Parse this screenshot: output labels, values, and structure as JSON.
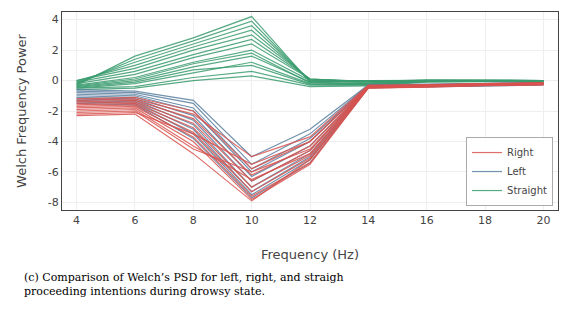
{
  "chart_data": {
    "type": "line",
    "xlabel": "Frequency (Hz)",
    "ylabel": "Welch Frequency Power",
    "annotations": [
      "(c) Comparison of Welch’s PSD for left, right, and straigh\nproceeding intentions during drowsy state."
    ],
    "x": [
      4,
      6,
      8,
      10,
      12,
      14,
      16,
      18,
      20
    ],
    "xlim": [
      3.5,
      20.5
    ],
    "xticks": [
      4,
      6,
      8,
      10,
      12,
      14,
      16,
      18,
      20
    ],
    "ylim": [
      -8.5,
      4.5
    ],
    "yticks": [
      -8,
      -6,
      -4,
      -2,
      0,
      2,
      4
    ],
    "grid": true,
    "legend": "lower right",
    "series": [
      {
        "name": "Straight",
        "color": "#3a9c6f",
        "values": [
          -0.5,
          -0.2,
          0.5,
          1.2,
          -0.2,
          -0.25,
          -0.05,
          -0.03,
          -0.02
        ]
      },
      {
        "name": "Straight",
        "color": "#3a9c6f",
        "values": [
          -0.4,
          0.0,
          0.9,
          1.6,
          -0.1,
          -0.2,
          -0.03,
          -0.02,
          -0.01
        ]
      },
      {
        "name": "Straight",
        "color": "#3a9c6f",
        "values": [
          -0.3,
          0.2,
          1.2,
          2.0,
          0.0,
          -0.15,
          -0.01,
          -0.01,
          0.0
        ]
      },
      {
        "name": "Straight",
        "color": "#3a9c6f",
        "values": [
          -0.2,
          0.4,
          1.5,
          2.4,
          0.1,
          -0.1,
          0.0,
          0.0,
          0.0
        ]
      },
      {
        "name": "Straight",
        "color": "#3a9c6f",
        "values": [
          -0.1,
          0.6,
          1.7,
          2.7,
          0.1,
          -0.08,
          0.01,
          0.01,
          0.0
        ]
      },
      {
        "name": "Straight",
        "color": "#3a9c6f",
        "values": [
          0.0,
          0.8,
          2.0,
          3.0,
          0.1,
          -0.05,
          0.02,
          0.01,
          0.0
        ]
      },
      {
        "name": "Straight",
        "color": "#3a9c6f",
        "values": [
          0.0,
          1.0,
          2.2,
          3.3,
          0.05,
          -0.03,
          0.02,
          0.01,
          0.0
        ]
      },
      {
        "name": "Straight",
        "color": "#3a9c6f",
        "values": [
          -0.1,
          1.2,
          2.4,
          3.6,
          0.0,
          -0.02,
          0.02,
          0.01,
          0.0
        ]
      },
      {
        "name": "Straight",
        "color": "#3a9c6f",
        "values": [
          -0.2,
          1.4,
          2.6,
          3.9,
          -0.05,
          -0.01,
          0.01,
          0.01,
          0.0
        ]
      },
      {
        "name": "Straight",
        "color": "#3a9c6f",
        "values": [
          -0.3,
          1.6,
          2.8,
          4.2,
          -0.1,
          0.0,
          0.01,
          0.01,
          0.0
        ]
      },
      {
        "name": "Straight",
        "color": "#3a9c6f",
        "values": [
          -0.5,
          -0.4,
          0.2,
          0.6,
          -0.3,
          -0.3,
          -0.08,
          -0.05,
          -0.03
        ]
      },
      {
        "name": "Straight",
        "color": "#3a9c6f",
        "values": [
          -0.6,
          -0.5,
          0.0,
          0.3,
          -0.4,
          -0.35,
          -0.1,
          -0.07,
          -0.05
        ]
      },
      {
        "name": "Straight",
        "color": "#3a9c6f",
        "values": [
          -0.45,
          -0.1,
          0.7,
          1.0,
          -0.25,
          -0.28,
          -0.06,
          -0.04,
          -0.02
        ]
      },
      {
        "name": "Straight",
        "color": "#3a9c6f",
        "values": [
          -0.35,
          0.1,
          1.1,
          1.8,
          -0.15,
          -0.22,
          -0.02,
          -0.02,
          -0.01
        ]
      },
      {
        "name": "Left",
        "color": "#5a7fa0",
        "values": [
          -0.8,
          -0.9,
          -1.8,
          -5.8,
          -3.8,
          -0.35,
          -0.28,
          -0.2,
          -0.15
        ]
      },
      {
        "name": "Left",
        "color": "#5a7fa0",
        "values": [
          -0.9,
          -1.0,
          -2.0,
          -6.0,
          -4.0,
          -0.37,
          -0.3,
          -0.22,
          -0.17
        ]
      },
      {
        "name": "Left",
        "color": "#5a7fa0",
        "values": [
          -1.0,
          -1.1,
          -2.3,
          -6.3,
          -4.3,
          -0.39,
          -0.32,
          -0.24,
          -0.19
        ]
      },
      {
        "name": "Left",
        "color": "#5a7fa0",
        "values": [
          -1.1,
          -1.2,
          -2.6,
          -6.6,
          -4.6,
          -0.41,
          -0.34,
          -0.26,
          -0.21
        ]
      },
      {
        "name": "Left",
        "color": "#5a7fa0",
        "values": [
          -1.2,
          -1.3,
          -2.9,
          -7.0,
          -4.8,
          -0.43,
          -0.36,
          -0.28,
          -0.23
        ]
      },
      {
        "name": "Left",
        "color": "#5a7fa0",
        "values": [
          -1.3,
          -1.4,
          -3.2,
          -7.3,
          -5.0,
          -0.45,
          -0.38,
          -0.3,
          -0.25
        ]
      },
      {
        "name": "Left",
        "color": "#5a7fa0",
        "values": [
          -1.4,
          -1.5,
          -3.5,
          -7.5,
          -5.2,
          -0.47,
          -0.4,
          -0.32,
          -0.27
        ]
      },
      {
        "name": "Left",
        "color": "#5a7fa0",
        "values": [
          -1.5,
          -1.6,
          -3.8,
          -7.7,
          -5.4,
          -0.49,
          -0.42,
          -0.34,
          -0.29
        ]
      },
      {
        "name": "Left",
        "color": "#5a7fa0",
        "values": [
          -0.7,
          -0.8,
          -1.5,
          -5.5,
          -3.5,
          -0.32,
          -0.26,
          -0.19,
          -0.14
        ]
      },
      {
        "name": "Left",
        "color": "#5a7fa0",
        "values": [
          -0.6,
          -0.7,
          -1.3,
          -5.0,
          -3.2,
          -0.29,
          -0.24,
          -0.17,
          -0.13
        ]
      },
      {
        "name": "Right",
        "color": "#d9534f",
        "values": [
          -1.2,
          -1.1,
          -2.0,
          -5.8,
          -4.0,
          -0.35,
          -0.3,
          -0.2,
          -0.15
        ]
      },
      {
        "name": "Right",
        "color": "#d9534f",
        "values": [
          -1.4,
          -1.3,
          -2.5,
          -6.2,
          -4.3,
          -0.38,
          -0.32,
          -0.22,
          -0.17
        ]
      },
      {
        "name": "Right",
        "color": "#d9534f",
        "values": [
          -1.5,
          -1.4,
          -2.8,
          -6.6,
          -4.6,
          -0.4,
          -0.34,
          -0.24,
          -0.19
        ]
      },
      {
        "name": "Right",
        "color": "#d9534f",
        "values": [
          -1.6,
          -1.5,
          -3.1,
          -7.0,
          -4.9,
          -0.42,
          -0.36,
          -0.26,
          -0.21
        ]
      },
      {
        "name": "Right",
        "color": "#d9534f",
        "values": [
          -1.7,
          -1.6,
          -3.4,
          -7.3,
          -5.1,
          -0.44,
          -0.38,
          -0.28,
          -0.23
        ]
      },
      {
        "name": "Right",
        "color": "#d9534f",
        "values": [
          -1.8,
          -1.7,
          -3.7,
          -7.6,
          -5.4,
          -0.46,
          -0.4,
          -0.3,
          -0.25
        ]
      },
      {
        "name": "Right",
        "color": "#d9534f",
        "values": [
          -1.9,
          -1.8,
          -4.0,
          -7.8,
          -5.5,
          -0.48,
          -0.42,
          -0.32,
          -0.27
        ]
      },
      {
        "name": "Right",
        "color": "#d9534f",
        "values": [
          -2.0,
          -1.9,
          -4.3,
          -6.5,
          -4.8,
          -0.4,
          -0.36,
          -0.28,
          -0.22
        ]
      },
      {
        "name": "Right",
        "color": "#d9534f",
        "values": [
          -2.1,
          -2.0,
          -4.5,
          -6.0,
          -4.5,
          -0.38,
          -0.34,
          -0.26,
          -0.2
        ]
      },
      {
        "name": "Right",
        "color": "#d9534f",
        "values": [
          -2.2,
          -2.1,
          -3.5,
          -5.5,
          -4.0,
          -0.35,
          -0.3,
          -0.22,
          -0.18
        ]
      },
      {
        "name": "Right",
        "color": "#d9534f",
        "values": [
          -1.3,
          -1.2,
          -2.2,
          -5.0,
          -3.7,
          -0.3,
          -0.26,
          -0.18,
          -0.14
        ]
      },
      {
        "name": "Right",
        "color": "#d9534f",
        "values": [
          -2.3,
          -2.2,
          -4.8,
          -7.9,
          -5.2,
          -0.5,
          -0.44,
          -0.34,
          -0.29
        ]
      }
    ]
  }
}
